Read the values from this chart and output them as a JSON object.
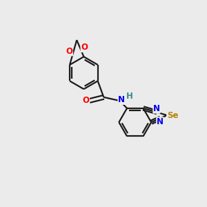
{
  "background_color": "#ebebeb",
  "bond_color": "#1a1a1a",
  "atom_colors": {
    "O": "#ff0000",
    "N": "#0000ee",
    "Se": "#b8860b",
    "H": "#3a8a8a",
    "C": "#1a1a1a"
  },
  "figsize": [
    3.0,
    3.0
  ],
  "dpi": 100,
  "lw": 1.6,
  "fs": 8.5
}
